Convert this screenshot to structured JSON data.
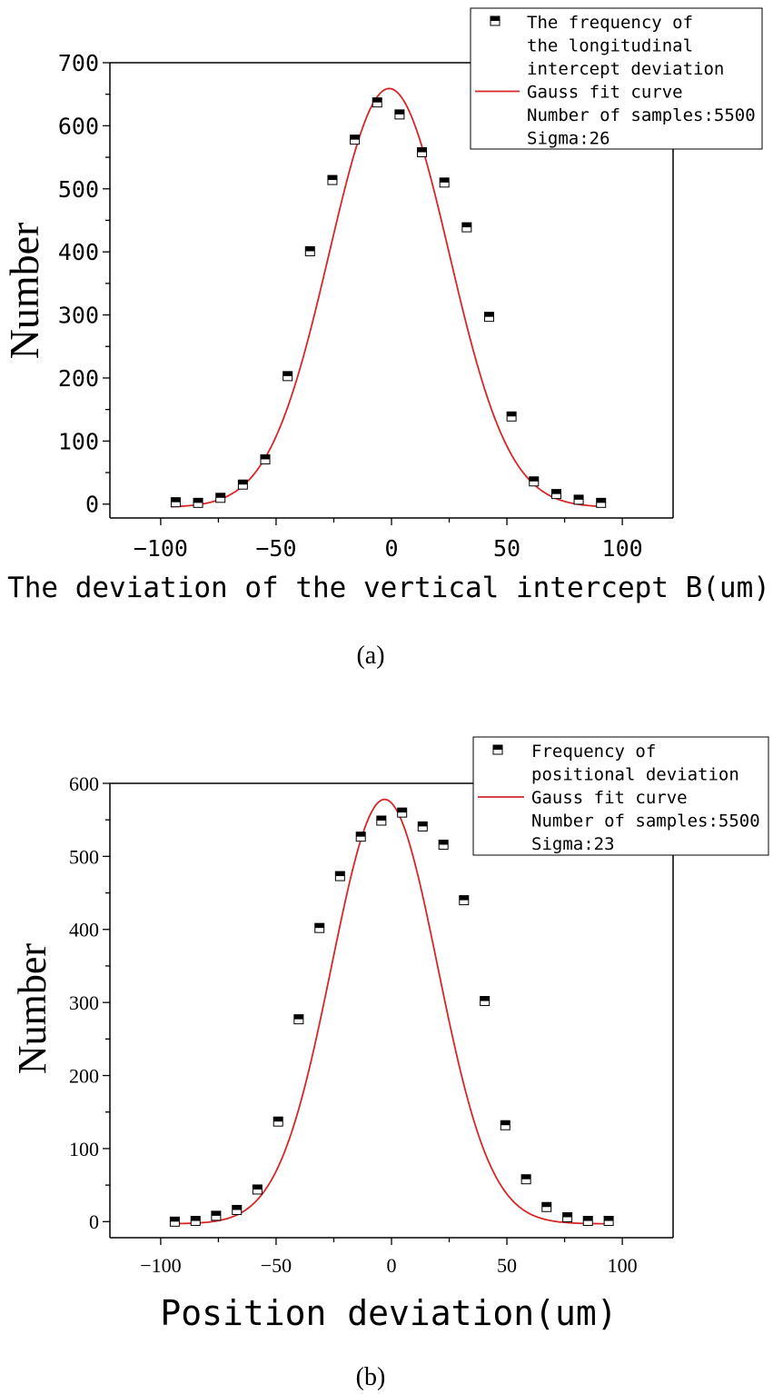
{
  "chart_data": [
    {
      "type": "scatter",
      "panel_label": "(a)",
      "xlabel": "The deviation of the vertical intercept B(um)",
      "ylabel": "Number",
      "xlim": [
        -122,
        122
      ],
      "ylim": [
        -22,
        700
      ],
      "xticks": [
        -100,
        -50,
        0,
        50,
        100
      ],
      "xtick_labels": [
        "−100",
        "−50",
        "0",
        "50",
        "100"
      ],
      "yticks": [
        0,
        100,
        200,
        300,
        400,
        500,
        600,
        700
      ],
      "ytick_labels": [
        "0",
        "100",
        "200",
        "300",
        "400",
        "500",
        "600",
        "700"
      ],
      "legend_position": "top-right",
      "series": [
        {
          "name": "The frequency of the longitudinal intercept deviation",
          "legend_lines": [
            "The frequency of",
            "the longitudinal",
            "intercept deviation"
          ],
          "marker": "half-filled-square",
          "x": [
            -93.5,
            -83.8,
            -74.1,
            -64.4,
            -54.7,
            -45.0,
            -35.3,
            -25.6,
            -15.9,
            -6.2,
            3.5,
            13.2,
            22.9,
            32.6,
            42.3,
            52.0,
            61.7,
            71.4,
            81.1,
            90.8
          ],
          "y": [
            3,
            2,
            10,
            31,
            71,
            203,
            401,
            514,
            578,
            637,
            618,
            558,
            510,
            439,
            297,
            139,
            36,
            16,
            7,
            2
          ]
        },
        {
          "name": "Gauss fit curve",
          "type": "line",
          "color": "#d62728",
          "fit": {
            "amplitude": 664,
            "mean": -1,
            "sigma": 26,
            "offset": -5
          }
        }
      ],
      "annotations": [
        "Number of samples:5500",
        "Sigma:26"
      ]
    },
    {
      "type": "scatter",
      "panel_label": "(b)",
      "xlabel": "Position deviation(um)",
      "ylabel": "Number",
      "xlim": [
        -122,
        122
      ],
      "ylim": [
        -22,
        600
      ],
      "xticks": [
        -100,
        -50,
        0,
        50,
        100
      ],
      "xtick_labels": [
        "−100",
        "−50",
        "0",
        "50",
        "100"
      ],
      "yticks": [
        0,
        100,
        200,
        300,
        400,
        500,
        600
      ],
      "ytick_labels": [
        "0",
        "100",
        "200",
        "300",
        "400",
        "500",
        "600"
      ],
      "legend_position": "top-right",
      "series": [
        {
          "name": "Frequency of positional deviation",
          "legend_lines": [
            "Frequency of",
            "positional deviation"
          ],
          "marker": "half-filled-square",
          "x": [
            -93.9,
            -84.9,
            -76.0,
            -67.0,
            -58.1,
            -49.1,
            -40.2,
            -31.2,
            -22.3,
            -13.3,
            -4.4,
            4.6,
            13.5,
            22.5,
            31.4,
            40.4,
            49.3,
            58.3,
            67.2,
            76.2,
            85.1,
            94.1
          ],
          "y": [
            0,
            1,
            8,
            16,
            44,
            137,
            277,
            402,
            473,
            527,
            549,
            560,
            541,
            516,
            440,
            302,
            132,
            58,
            20,
            6,
            1,
            1
          ]
        },
        {
          "name": "Gauss fit curve",
          "type": "line",
          "color": "#d62728",
          "fit": {
            "amplitude": 581,
            "mean": -3,
            "sigma": 23,
            "offset": -3
          }
        }
      ],
      "annotations": [
        "Number of samples:5500",
        "Sigma:23"
      ]
    }
  ]
}
